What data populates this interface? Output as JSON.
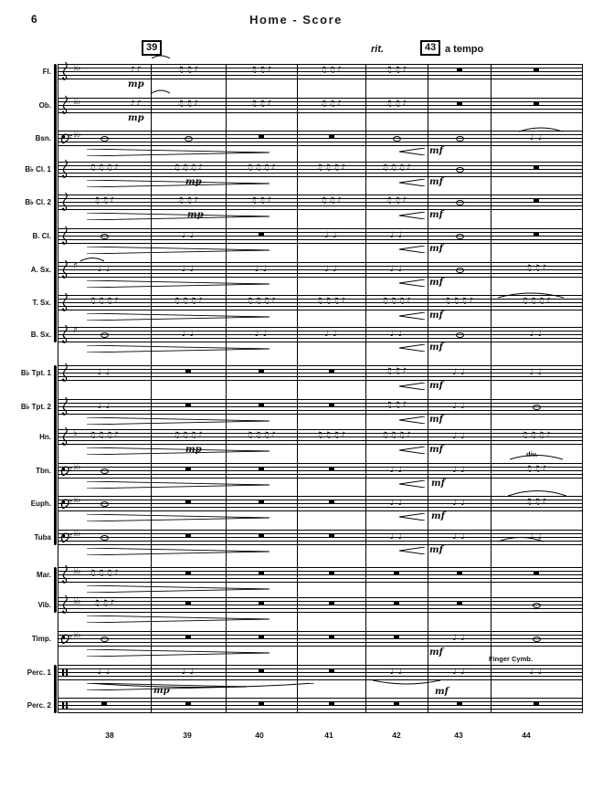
{
  "page": {
    "number": "6",
    "title": "Home - Score"
  },
  "markings": {
    "rehearsal_39": "39",
    "rit": "rit.",
    "rehearsal_43": "43",
    "a_tempo": "a tempo"
  },
  "instruments": [
    {
      "label": "Fl."
    },
    {
      "label": "Ob."
    },
    {
      "label": "Bsn."
    },
    {
      "label": "B♭ Cl. 1"
    },
    {
      "label": "B♭ Cl. 2"
    },
    {
      "label": "B. Cl."
    },
    {
      "label": "A. Sx."
    },
    {
      "label": "T. Sx."
    },
    {
      "label": "B. Sx."
    },
    {
      "label": "B♭ Tpt. 1"
    },
    {
      "label": "B♭ Tpt. 2"
    },
    {
      "label": "Hn."
    },
    {
      "label": "Tbn."
    },
    {
      "label": "Euph."
    },
    {
      "label": "Tuba"
    },
    {
      "label": "Mar."
    },
    {
      "label": "Vib."
    },
    {
      "label": "Timp."
    },
    {
      "label": "Perc. 1"
    },
    {
      "label": "Perc. 2"
    }
  ],
  "measure_numbers": [
    "38",
    "39",
    "40",
    "41",
    "42",
    "43",
    "44"
  ],
  "dynamics": [
    {
      "staff": "Fl.",
      "measure": "38",
      "text": "mp"
    },
    {
      "staff": "Ob.",
      "measure": "38",
      "text": "mp"
    },
    {
      "staff": "B♭ Cl. 1",
      "measure": "39",
      "text": "mp"
    },
    {
      "staff": "B♭ Cl. 2",
      "measure": "39",
      "text": "mp"
    },
    {
      "staff": "Hn.",
      "measure": "39",
      "text": "mp"
    },
    {
      "staff": "Perc. 1",
      "measure": "39",
      "text": "mp"
    },
    {
      "staff": "Bsn.",
      "measure": "43",
      "text": "mf"
    },
    {
      "staff": "B♭ Cl. 1",
      "measure": "43",
      "text": "mf"
    },
    {
      "staff": "B♭ Cl. 2",
      "measure": "43",
      "text": "mf"
    },
    {
      "staff": "B. Cl.",
      "measure": "43",
      "text": "mf"
    },
    {
      "staff": "A. Sx.",
      "measure": "43",
      "text": "mf"
    },
    {
      "staff": "T. Sx.",
      "measure": "43",
      "text": "mf"
    },
    {
      "staff": "B. Sx.",
      "measure": "43",
      "text": "mf"
    },
    {
      "staff": "B♭ Tpt. 1",
      "measure": "43",
      "text": "mf"
    },
    {
      "staff": "B♭ Tpt. 2",
      "measure": "43",
      "text": "mf"
    },
    {
      "staff": "Hn.",
      "measure": "43",
      "text": "mf"
    },
    {
      "staff": "Tbn.",
      "measure": "43",
      "text": "mf"
    },
    {
      "staff": "Euph.",
      "measure": "43",
      "text": "mf"
    },
    {
      "staff": "Tuba",
      "measure": "43",
      "text": "mf"
    },
    {
      "staff": "Timp.",
      "measure": "43",
      "text": "mf"
    },
    {
      "staff": "Perc. 1",
      "measure": "43",
      "text": "mf"
    }
  ],
  "annotations": [
    {
      "staff": "Tbn.",
      "measure": "44",
      "text": "div."
    },
    {
      "staff": "Perc. 1",
      "measure": "43",
      "text": "Finger Cymb."
    }
  ]
}
